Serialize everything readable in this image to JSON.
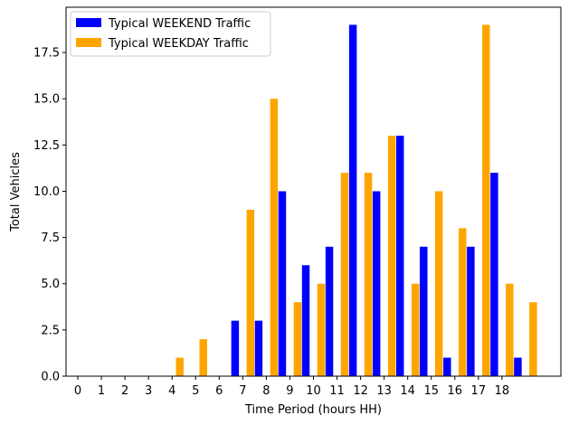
{
  "chart_data": {
    "type": "bar",
    "title": "",
    "xlabel": "Time Period (hours HH)",
    "ylabel": "Total Vehicles",
    "x_ticks": [
      "0",
      "1",
      "2",
      "3",
      "4",
      "5",
      "6",
      "7",
      "8",
      "9",
      "10",
      "11",
      "12",
      "13",
      "14",
      "15",
      "16",
      "17",
      "18"
    ],
    "x": [
      0,
      1,
      2,
      3,
      4,
      5,
      6,
      7,
      8,
      9,
      10,
      11,
      12,
      13,
      14,
      15,
      16,
      17,
      18,
      19
    ],
    "xlim": [
      -0.5,
      20.5
    ],
    "y_ticks": [
      "0.0",
      "2.5",
      "5.0",
      "7.5",
      "10.0",
      "12.5",
      "15.0",
      "17.5"
    ],
    "ylim": [
      0,
      19.95
    ],
    "grid": false,
    "legend_position": "top-left",
    "series": [
      {
        "name": "Typical WEEKEND Traffic",
        "color": "#0000ff",
        "offset": -0.325,
        "values": [
          0,
          0,
          0,
          0,
          0,
          0,
          0,
          3,
          3,
          10,
          6,
          7,
          19,
          10,
          13,
          7,
          1,
          7,
          11,
          1
        ]
      },
      {
        "name": "Typical WEEKDAY Traffic",
        "color": "#ffa500",
        "offset": 0.325,
        "values": [
          0,
          0,
          0,
          0,
          1,
          2,
          0,
          9,
          15,
          4,
          5,
          11,
          11,
          13,
          5,
          10,
          8,
          19,
          5,
          4
        ]
      }
    ]
  }
}
